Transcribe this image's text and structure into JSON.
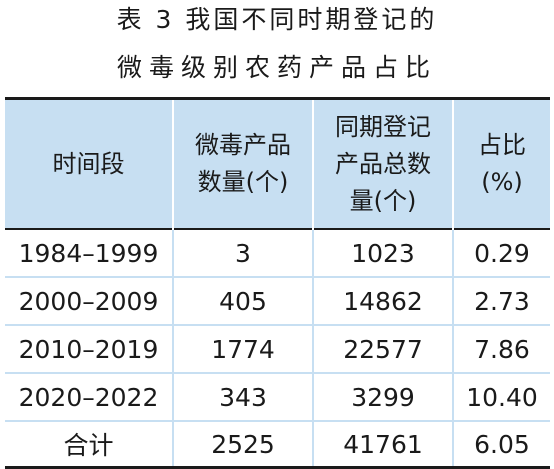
{
  "caption": {
    "line1": "表 3  我国不同时期登记的",
    "line2": "微毒级别农药产品占比"
  },
  "table": {
    "headers": [
      [
        "时间段"
      ],
      [
        "微毒产品",
        "数量(个)"
      ],
      [
        "同期登记",
        "产品总数",
        "量(个)"
      ],
      [
        "占比",
        "(%)"
      ]
    ],
    "rows": [
      [
        "1984–1999",
        "3",
        "1023",
        "0.29"
      ],
      [
        "2000–2009",
        "405",
        "14862",
        "2.73"
      ],
      [
        "2010–2019",
        "1774",
        "22577",
        "7.86"
      ],
      [
        "2020–2022",
        "343",
        "3299",
        "10.40"
      ],
      [
        "合计",
        "2525",
        "41761",
        "6.05"
      ]
    ]
  }
}
